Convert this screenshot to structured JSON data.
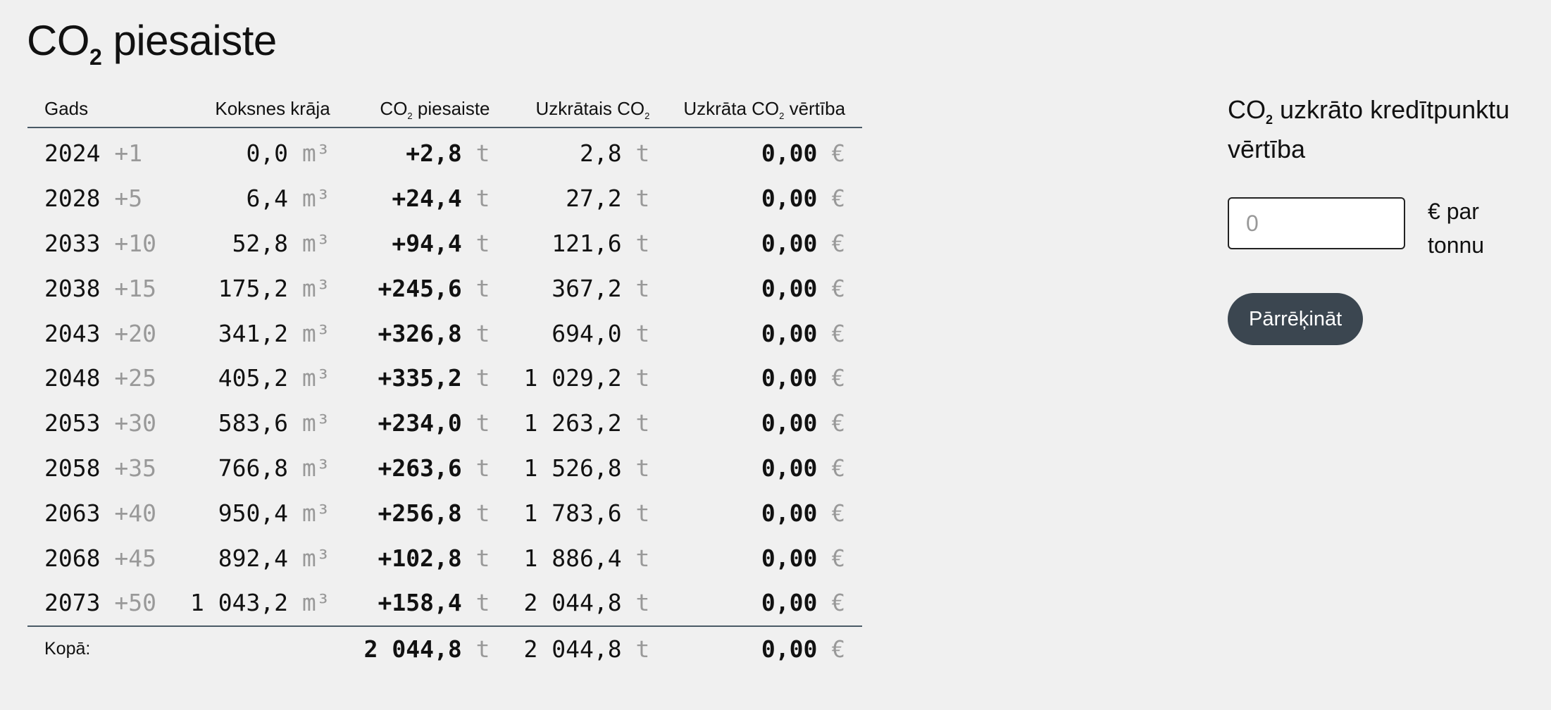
{
  "title": {
    "main": "CO",
    "sub": "2",
    "rest": " piesaiste"
  },
  "table": {
    "headers": {
      "year": "Gads",
      "stock": "Koksnes krāja",
      "capture_pre": "CO",
      "capture_sub": "2",
      "capture_post": " piesaiste",
      "accum_pre": "Uzkrātais CO",
      "accum_sub": "2",
      "value_pre": "Uzkrāta CO",
      "value_sub": "2",
      "value_post": " vērtība"
    },
    "units": {
      "volume": "m³",
      "tonnes": "t",
      "currency": "€"
    },
    "rows": [
      {
        "year": "2024",
        "offset": "+1",
        "stock": "0,0",
        "capture": "+2,8",
        "accum": "2,8",
        "value": "0,00"
      },
      {
        "year": "2028",
        "offset": "+5",
        "stock": "6,4",
        "capture": "+24,4",
        "accum": "27,2",
        "value": "0,00"
      },
      {
        "year": "2033",
        "offset": "+10",
        "stock": "52,8",
        "capture": "+94,4",
        "accum": "121,6",
        "value": "0,00"
      },
      {
        "year": "2038",
        "offset": "+15",
        "stock": "175,2",
        "capture": "+245,6",
        "accum": "367,2",
        "value": "0,00"
      },
      {
        "year": "2043",
        "offset": "+20",
        "stock": "341,2",
        "capture": "+326,8",
        "accum": "694,0",
        "value": "0,00"
      },
      {
        "year": "2048",
        "offset": "+25",
        "stock": "405,2",
        "capture": "+335,2",
        "accum": "1 029,2",
        "value": "0,00"
      },
      {
        "year": "2053",
        "offset": "+30",
        "stock": "583,6",
        "capture": "+234,0",
        "accum": "1 263,2",
        "value": "0,00"
      },
      {
        "year": "2058",
        "offset": "+35",
        "stock": "766,8",
        "capture": "+263,6",
        "accum": "1 526,8",
        "value": "0,00"
      },
      {
        "year": "2063",
        "offset": "+40",
        "stock": "950,4",
        "capture": "+256,8",
        "accum": "1 783,6",
        "value": "0,00"
      },
      {
        "year": "2068",
        "offset": "+45",
        "stock": "892,4",
        "capture": "+102,8",
        "accum": "1 886,4",
        "value": "0,00"
      },
      {
        "year": "2073",
        "offset": "+50",
        "stock": "1 043,2",
        "capture": "+158,4",
        "accum": "2 044,8",
        "value": "0,00"
      }
    ],
    "totals": {
      "label": "Kopā:",
      "capture": "2 044,8",
      "accum": "2 044,8",
      "value": "0,00"
    }
  },
  "panel": {
    "heading_pre": "CO",
    "heading_sub": "2",
    "heading_post": " uzkrāto kredītpunktu vērtība",
    "input_placeholder": "0",
    "input_suffix": "€ par tonnu",
    "button_label": "Pārrēķināt"
  }
}
